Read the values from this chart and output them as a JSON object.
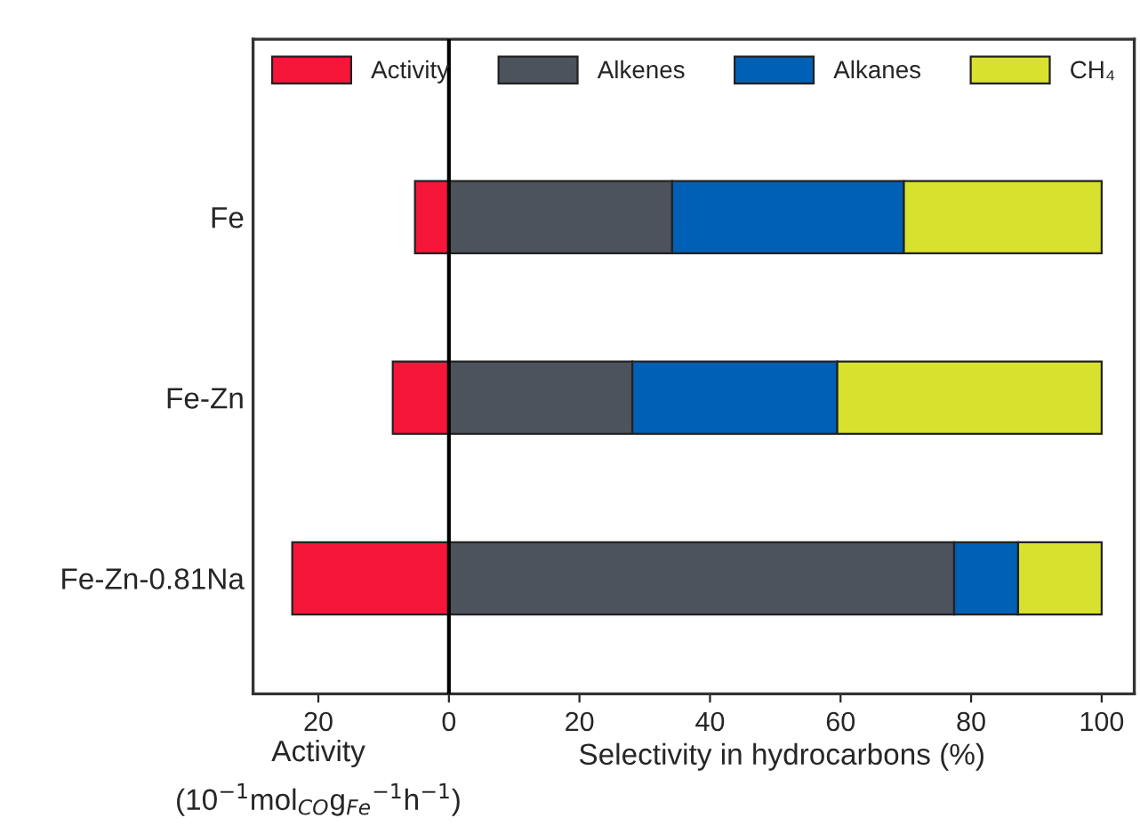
{
  "chart_data": {
    "type": "bar",
    "orientation": "horizontal",
    "stacked": true,
    "categories": [
      "Fe",
      "Fe-Zn",
      "Fe-Zn-0.81Na"
    ],
    "series": [
      {
        "name": "Activity",
        "color": "#f5163a",
        "values": [
          -5.2,
          -8.6,
          -24.0
        ]
      },
      {
        "name": "Alkenes",
        "color": "#4d535c",
        "values": [
          34.2,
          28.1,
          77.4
        ]
      },
      {
        "name": "Alkanes",
        "color": "#0060b6",
        "values": [
          35.5,
          31.4,
          9.8
        ]
      },
      {
        "name": "CH₄",
        "color": "#d8e22e",
        "values": [
          30.3,
          40.5,
          12.8
        ]
      }
    ],
    "xlim": [
      -30,
      105
    ],
    "xticks": [
      {
        "value": -20,
        "label": "20"
      },
      0,
      20,
      40,
      60,
      80,
      100
    ],
    "xlabel": "Selectivity in hydrocarbons (%)",
    "annotations": [
      "Activity\n(10$^{−1}$mol$_{CO}$g$_{Fe}$$^{−1}$h$^{−1}$)"
    ],
    "ref_lines": [
      {
        "axis": "x",
        "value": 0,
        "color": "#000000"
      }
    ],
    "legend": "top",
    "grid": false
  }
}
